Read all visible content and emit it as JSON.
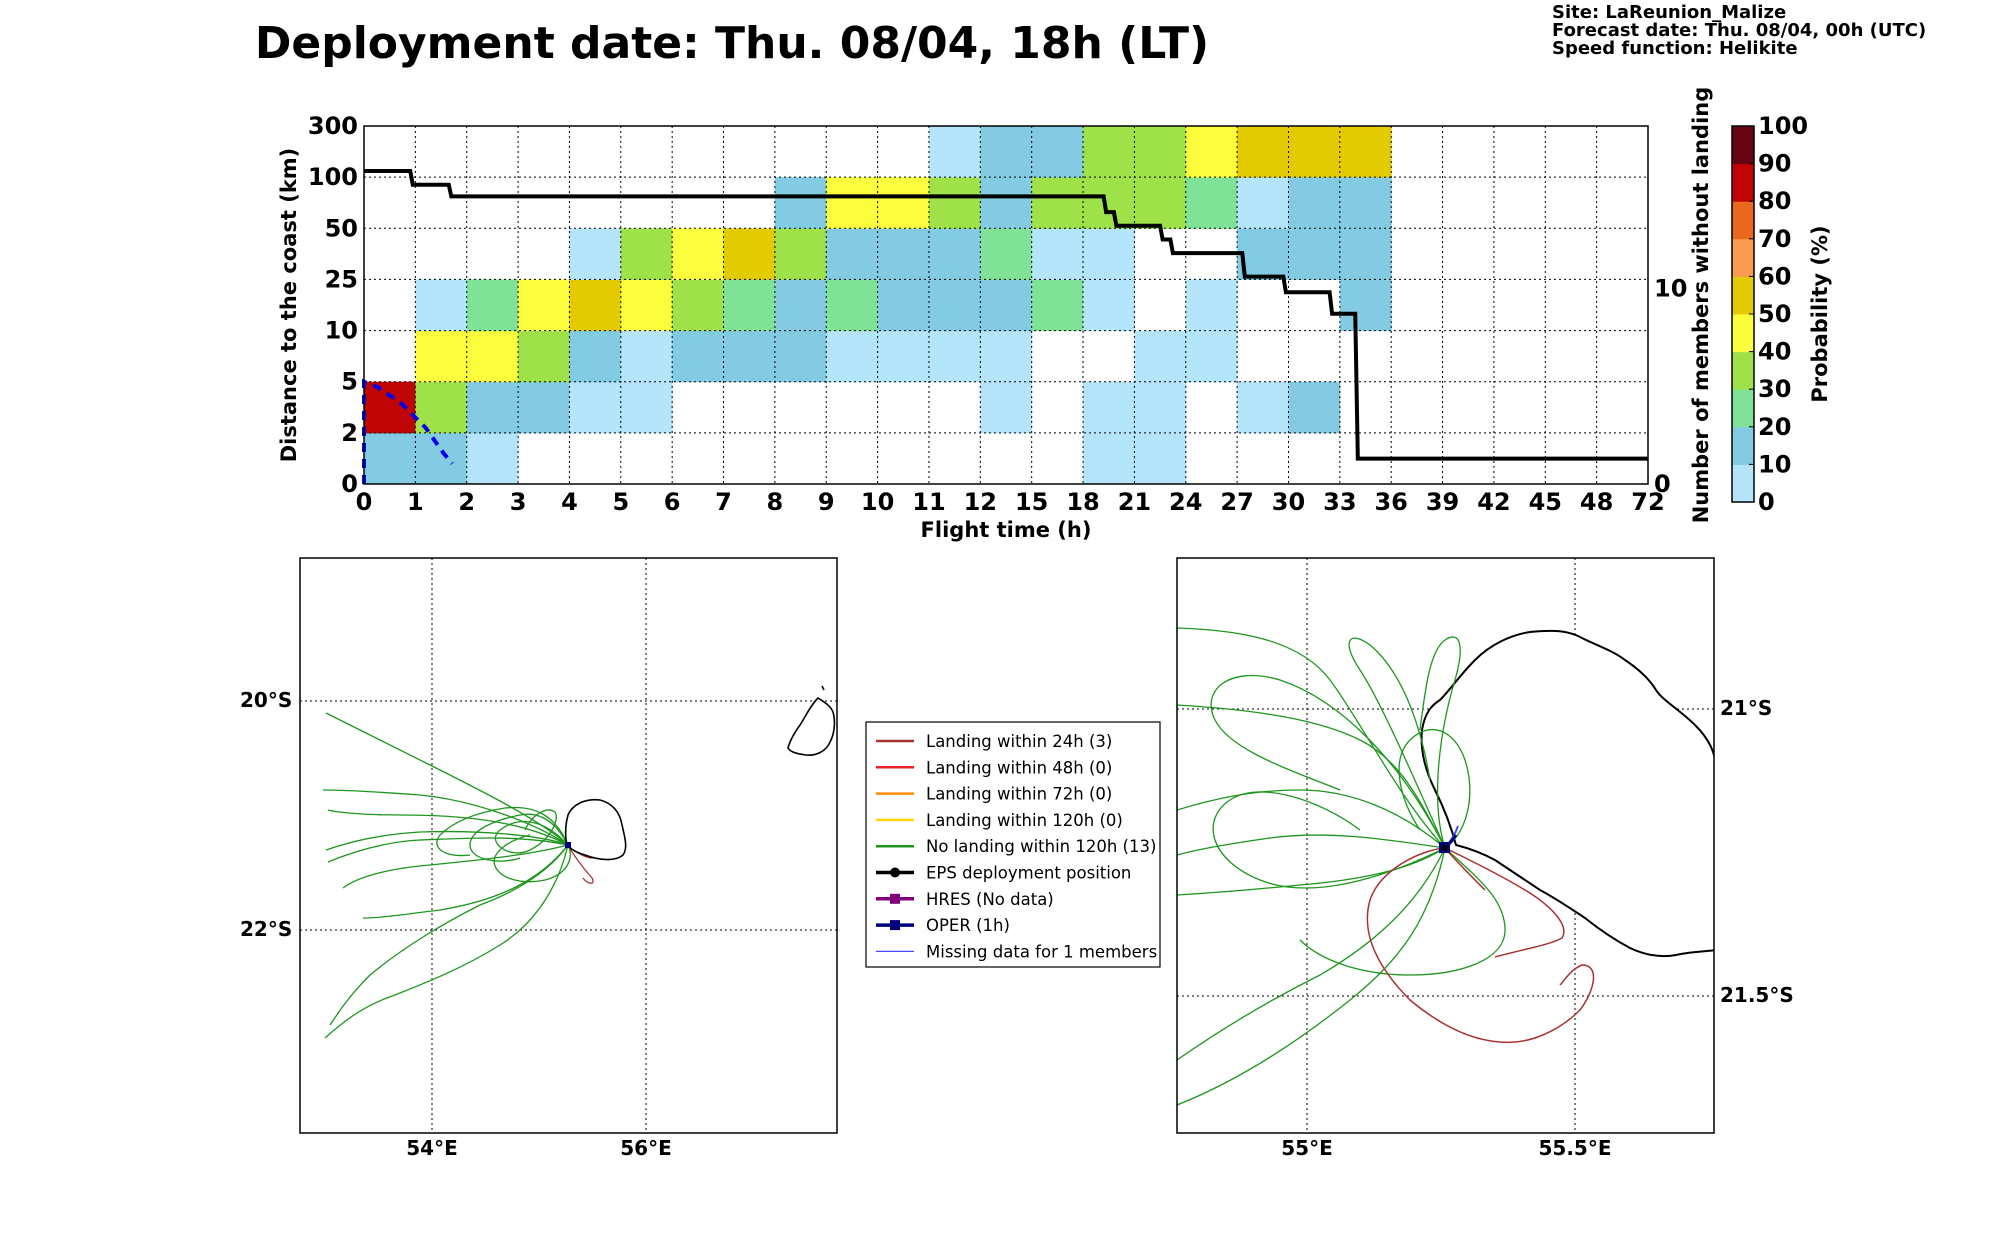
{
  "header": {
    "title": "Deployment date: Thu. 08/04, 18h (LT)",
    "site": "Site: LaReunion_Malize",
    "forecast": "Forecast date: Thu. 08/04, 00h (UTC)",
    "speed": "Speed function: Helikite"
  },
  "colors": {
    "p0": "#b5e5fa",
    "p10": "#82cbe3",
    "p20": "#80e296",
    "p30": "#9ee148",
    "p40": "#fcfd3c",
    "p50": "#e3cb02",
    "p60": "#fb9b4f",
    "p70": "#e9681d",
    "p80": "#c00303",
    "p90": "#680515",
    "landing24": "#a83232",
    "landing48": "#ee2222",
    "landing72": "#ff8c00",
    "landing120": "#ffd700",
    "nolanding": "#1e961e",
    "eps": "#000000",
    "hres": "#800080",
    "oper": "#00007a",
    "missing": "#4b4bff"
  },
  "chart_data": [
    {
      "type": "heatmap",
      "xlabel": "Flight time (h)",
      "ylabel": "Distance to the coast (km)",
      "y2label": "Number of members without landing",
      "colorbar_label": "Probability (%)",
      "x_ticks": [
        "0",
        "1",
        "2",
        "3",
        "4",
        "5",
        "6",
        "7",
        "8",
        "9",
        "10",
        "11",
        "12",
        "15",
        "18",
        "21",
        "24",
        "27",
        "30",
        "33",
        "36",
        "39",
        "42",
        "45",
        "48",
        "72"
      ],
      "y_ticks": [
        "0",
        "2",
        "5",
        "10",
        "25",
        "50",
        "100",
        "300"
      ],
      "y2_ticks": [
        "0",
        "10"
      ],
      "colorbar_ticks": [
        "0",
        "10",
        "20",
        "30",
        "40",
        "50",
        "60",
        "70",
        "80",
        "90",
        "100"
      ],
      "grid": true,
      "cells": [
        {
          "x": 0,
          "y": 0,
          "c": "p10"
        },
        {
          "x": 1,
          "y": 0,
          "c": "p10"
        },
        {
          "x": 2,
          "y": 0,
          "c": "p0"
        },
        {
          "x": 18,
          "y": 0,
          "c": "p0"
        },
        {
          "x": 21,
          "y": 0,
          "c": "p0"
        },
        {
          "x": 0,
          "y": 1,
          "c": "p80"
        },
        {
          "x": 1,
          "y": 1,
          "c": "p30"
        },
        {
          "x": 2,
          "y": 1,
          "c": "p10"
        },
        {
          "x": 3,
          "y": 1,
          "c": "p10"
        },
        {
          "x": 4,
          "y": 1,
          "c": "p0"
        },
        {
          "x": 5,
          "y": 1,
          "c": "p0"
        },
        {
          "x": 12,
          "y": 1,
          "c": "p0"
        },
        {
          "x": 18,
          "y": 1,
          "c": "p0"
        },
        {
          "x": 21,
          "y": 1,
          "c": "p0"
        },
        {
          "x": 27,
          "y": 1,
          "c": "p0"
        },
        {
          "x": 30,
          "y": 1,
          "c": "p10"
        },
        {
          "x": 1,
          "y": 2,
          "c": "p40"
        },
        {
          "x": 2,
          "y": 2,
          "c": "p40"
        },
        {
          "x": 3,
          "y": 2,
          "c": "p30"
        },
        {
          "x": 4,
          "y": 2,
          "c": "p10"
        },
        {
          "x": 5,
          "y": 2,
          "c": "p0"
        },
        {
          "x": 6,
          "y": 2,
          "c": "p10"
        },
        {
          "x": 7,
          "y": 2,
          "c": "p10"
        },
        {
          "x": 8,
          "y": 2,
          "c": "p10"
        },
        {
          "x": 9,
          "y": 2,
          "c": "p0"
        },
        {
          "x": 10,
          "y": 2,
          "c": "p0"
        },
        {
          "x": 11,
          "y": 2,
          "c": "p0"
        },
        {
          "x": 12,
          "y": 2,
          "c": "p0"
        },
        {
          "x": 21,
          "y": 2,
          "c": "p0"
        },
        {
          "x": 24,
          "y": 2,
          "c": "p0"
        },
        {
          "x": 1,
          "y": 3,
          "c": "p0"
        },
        {
          "x": 2,
          "y": 3,
          "c": "p20"
        },
        {
          "x": 3,
          "y": 3,
          "c": "p40"
        },
        {
          "x": 4,
          "y": 3,
          "c": "p50"
        },
        {
          "x": 5,
          "y": 3,
          "c": "p40"
        },
        {
          "x": 6,
          "y": 3,
          "c": "p30"
        },
        {
          "x": 7,
          "y": 3,
          "c": "p20"
        },
        {
          "x": 8,
          "y": 3,
          "c": "p10"
        },
        {
          "x": 9,
          "y": 3,
          "c": "p20"
        },
        {
          "x": 10,
          "y": 3,
          "c": "p10"
        },
        {
          "x": 11,
          "y": 3,
          "c": "p10"
        },
        {
          "x": 12,
          "y": 3,
          "c": "p10"
        },
        {
          "x": 15,
          "y": 3,
          "c": "p20"
        },
        {
          "x": 18,
          "y": 3,
          "c": "p0"
        },
        {
          "x": 24,
          "y": 3,
          "c": "p0"
        },
        {
          "x": 33,
          "y": 3,
          "c": "p10"
        },
        {
          "x": 4,
          "y": 4,
          "c": "p0"
        },
        {
          "x": 5,
          "y": 4,
          "c": "p30"
        },
        {
          "x": 6,
          "y": 4,
          "c": "p40"
        },
        {
          "x": 7,
          "y": 4,
          "c": "p50"
        },
        {
          "x": 8,
          "y": 4,
          "c": "p30"
        },
        {
          "x": 9,
          "y": 4,
          "c": "p10"
        },
        {
          "x": 10,
          "y": 4,
          "c": "p10"
        },
        {
          "x": 11,
          "y": 4,
          "c": "p10"
        },
        {
          "x": 12,
          "y": 4,
          "c": "p20"
        },
        {
          "x": 15,
          "y": 4,
          "c": "p0"
        },
        {
          "x": 18,
          "y": 4,
          "c": "p0"
        },
        {
          "x": 27,
          "y": 4,
          "c": "p10"
        },
        {
          "x": 30,
          "y": 4,
          "c": "p10"
        },
        {
          "x": 33,
          "y": 4,
          "c": "p10"
        },
        {
          "x": 8,
          "y": 5,
          "c": "p10"
        },
        {
          "x": 9,
          "y": 5,
          "c": "p40"
        },
        {
          "x": 10,
          "y": 5,
          "c": "p40"
        },
        {
          "x": 11,
          "y": 5,
          "c": "p30"
        },
        {
          "x": 12,
          "y": 5,
          "c": "p10"
        },
        {
          "x": 15,
          "y": 5,
          "c": "p30"
        },
        {
          "x": 18,
          "y": 5,
          "c": "p30"
        },
        {
          "x": 21,
          "y": 5,
          "c": "p30"
        },
        {
          "x": 24,
          "y": 5,
          "c": "p20"
        },
        {
          "x": 27,
          "y": 5,
          "c": "p0"
        },
        {
          "x": 30,
          "y": 5,
          "c": "p10"
        },
        {
          "x": 33,
          "y": 5,
          "c": "p10"
        },
        {
          "x": 11,
          "y": 6,
          "c": "p0"
        },
        {
          "x": 12,
          "y": 6,
          "c": "p10"
        },
        {
          "x": 15,
          "y": 6,
          "c": "p10"
        },
        {
          "x": 18,
          "y": 6,
          "c": "p30"
        },
        {
          "x": 21,
          "y": 6,
          "c": "p30"
        },
        {
          "x": 24,
          "y": 6,
          "c": "p40"
        },
        {
          "x": 27,
          "y": 6,
          "c": "p50"
        },
        {
          "x": 30,
          "y": 6,
          "c": "p50"
        },
        {
          "x": 33,
          "y": 6,
          "c": "p50"
        }
      ],
      "members_step_line": {
        "comment": "x = flight-time tick index (fractional), y = members without landing",
        "points": [
          [
            0,
            16
          ],
          [
            0.9,
            16
          ],
          [
            0.95,
            15.3
          ],
          [
            1.65,
            15.3
          ],
          [
            1.7,
            14.7
          ],
          [
            14.4,
            14.7
          ],
          [
            14.45,
            13.9
          ],
          [
            14.6,
            13.9
          ],
          [
            14.65,
            13.2
          ],
          [
            15.5,
            13.2
          ],
          [
            15.55,
            12.5
          ],
          [
            15.7,
            12.5
          ],
          [
            15.75,
            11.8
          ],
          [
            17.1,
            11.8
          ],
          [
            17.15,
            10.6
          ],
          [
            17.9,
            10.6
          ],
          [
            17.95,
            9.8
          ],
          [
            18.8,
            9.8
          ],
          [
            18.85,
            8.7
          ],
          [
            19.3,
            8.7
          ],
          [
            19.35,
            1.3
          ],
          [
            25,
            1.3
          ]
        ]
      },
      "deployment_dashed_curve": {
        "comment": "x = flight-time tick index, y = distance tick index",
        "points": [
          [
            0,
            0
          ],
          [
            0,
            2
          ],
          [
            0.25,
            1.9
          ],
          [
            0.7,
            1.6
          ],
          [
            1.2,
            1.1
          ],
          [
            1.55,
            0.6
          ],
          [
            1.72,
            0.4
          ]
        ]
      }
    },
    {
      "type": "map",
      "name": "regional",
      "lon_ticks": [
        "54°E",
        "56°E"
      ],
      "lat_ticks": [
        "20°S",
        "22°S"
      ],
      "lon_range": [
        52.77,
        57.77
      ],
      "lat_range": [
        -18.8,
        -23.8
      ],
      "grid": true
    },
    {
      "type": "map",
      "name": "zoom",
      "lon_ticks": [
        "55°E",
        "55.5°E"
      ],
      "lat_ticks": [
        "21°S",
        "21.5°S"
      ],
      "lon_range": [
        54.76,
        55.76
      ],
      "lat_range": [
        -20.78,
        -21.78
      ],
      "grid": true
    }
  ],
  "legend": {
    "placement": "center",
    "items": [
      {
        "label": "Landing within 24h (3)",
        "color": "landing24",
        "marker": "line"
      },
      {
        "label": "Landing within 48h (0)",
        "color": "landing48",
        "marker": "line"
      },
      {
        "label": "Landing within 72h (0)",
        "color": "landing72",
        "marker": "line"
      },
      {
        "label": "Landing within 120h (0)",
        "color": "landing120",
        "marker": "line"
      },
      {
        "label": "No landing within 120h (13)",
        "color": "nolanding",
        "marker": "line"
      },
      {
        "label": "EPS deployment position",
        "color": "eps",
        "marker": "dot"
      },
      {
        "label": "HRES (No data)",
        "color": "hres",
        "marker": "square"
      },
      {
        "label": "OPER (1h)",
        "color": "oper",
        "marker": "square"
      },
      {
        "label": "Missing data for 1 members",
        "color": "missing",
        "marker": "thin"
      }
    ]
  }
}
